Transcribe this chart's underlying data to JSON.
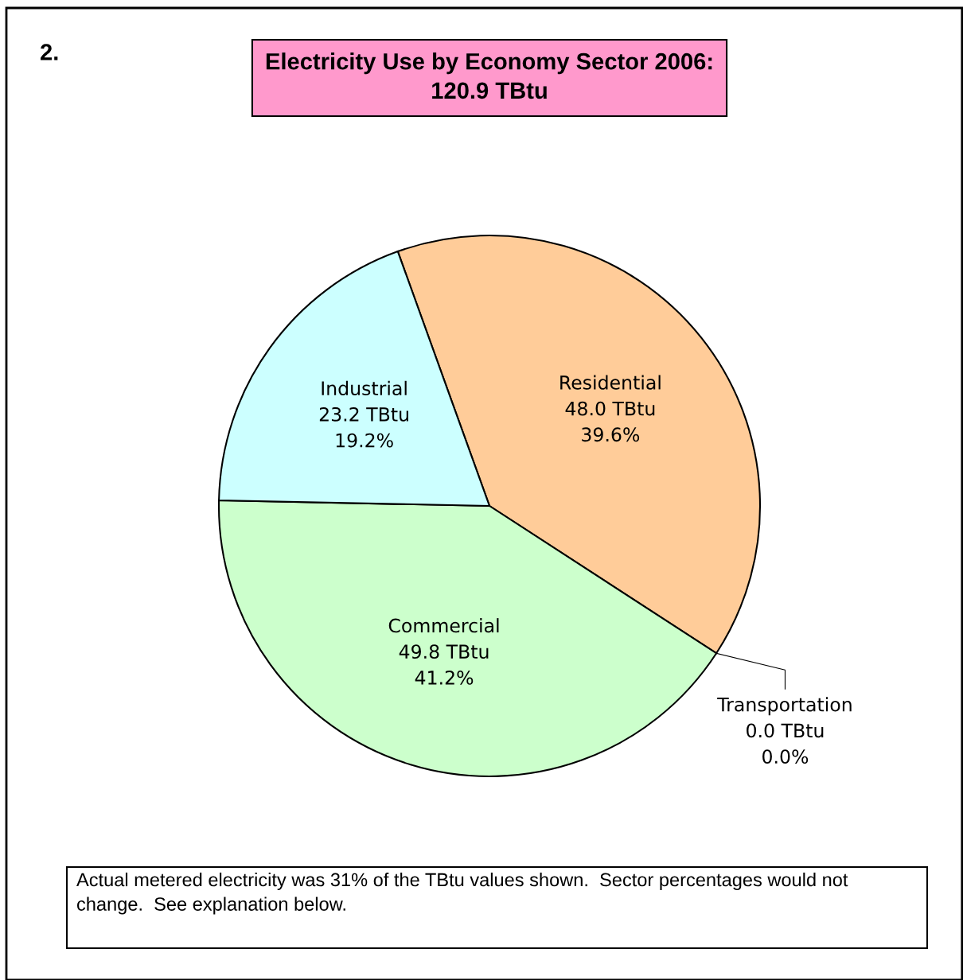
{
  "chart_data": {
    "type": "pie",
    "title": "Electricity Use by Economy Sector 2006:\n120.9 TBtu",
    "categories": [
      "Residential",
      "Transportation",
      "Commercial",
      "Industrial"
    ],
    "values": [
      48.0,
      0.0,
      49.8,
      23.2
    ],
    "colors": [
      "#ffcc99",
      "#99ccff",
      "#ccffcc",
      "#ccffff"
    ],
    "value_labels": [
      "48.0 TBtu\n39.6%",
      "0.0 TBtu\n0.0%",
      "49.8 TBtu\n41.2%",
      "23.2 TBtu\n19.2%"
    ],
    "annotations": [
      "2.",
      "Actual metered electricity was 31% of the TBtu values shown.  Sector percentages would not change.  See explanation below."
    ]
  }
}
